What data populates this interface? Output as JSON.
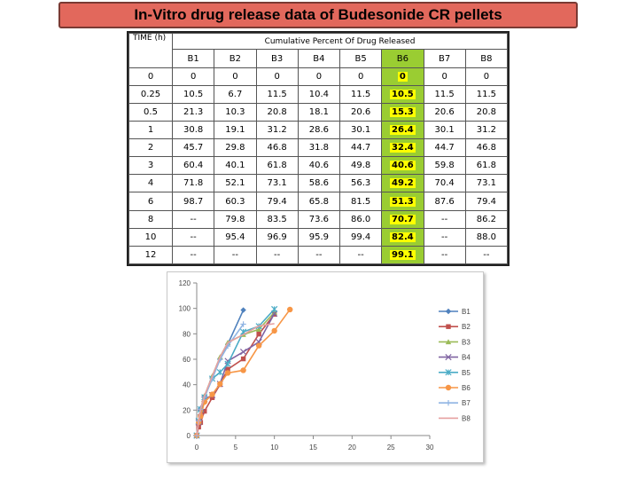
{
  "title": "In-Vitro drug release data of Budesonide  CR pellets",
  "table": {
    "time_header": "TIME (h)",
    "group_header": "Cumulative Percent Of Drug Released",
    "columns": [
      "B1",
      "B2",
      "B3",
      "B4",
      "B5",
      "B6",
      "B7",
      "B8"
    ],
    "highlight_column": "B6",
    "rows": [
      {
        "t": "0",
        "v": [
          "0",
          "0",
          "0",
          "0",
          "0",
          "0",
          "0",
          "0"
        ]
      },
      {
        "t": "0.25",
        "v": [
          "10.5",
          "6.7",
          "11.5",
          "10.4",
          "11.5",
          "10.5",
          "11.5",
          "11.5"
        ]
      },
      {
        "t": "0.5",
        "v": [
          "21.3",
          "10.3",
          "20.8",
          "18.1",
          "20.6",
          "15.3",
          "20.6",
          "20.8"
        ]
      },
      {
        "t": "1",
        "v": [
          "30.8",
          "19.1",
          "31.2",
          "28.6",
          "30.1",
          "26.4",
          "30.1",
          "31.2"
        ]
      },
      {
        "t": "2",
        "v": [
          "45.7",
          "29.8",
          "46.8",
          "31.8",
          "44.7",
          "32.4",
          "44.7",
          "46.8"
        ]
      },
      {
        "t": "3",
        "v": [
          "60.4",
          "40.1",
          "61.8",
          "40.6",
          "49.8",
          "40.6",
          "59.8",
          "61.8"
        ]
      },
      {
        "t": "4",
        "v": [
          "71.8",
          "52.1",
          "73.1",
          "58.6",
          "56.3",
          "49.2",
          "70.4",
          "73.1"
        ]
      },
      {
        "t": "6",
        "v": [
          "98.7",
          "60.3",
          "79.4",
          "65.8",
          "81.5",
          "51.3",
          "87.6",
          "79.4"
        ]
      },
      {
        "t": "8",
        "v": [
          "--",
          "79.8",
          "83.5",
          "73.6",
          "86.0",
          "70.7",
          "--",
          "86.2"
        ]
      },
      {
        "t": "10",
        "v": [
          "--",
          "95.4",
          "96.9",
          "95.9",
          "99.4",
          "82.4",
          "--",
          "88.0"
        ]
      },
      {
        "t": "12",
        "v": [
          "--",
          "--",
          "--",
          "--",
          "--",
          "99.1",
          "--",
          "--"
        ]
      }
    ]
  },
  "chart_data": {
    "type": "line",
    "x": [
      0,
      0.25,
      0.5,
      1,
      2,
      3,
      4,
      6,
      8,
      10,
      12
    ],
    "xlim": [
      0,
      30
    ],
    "ylim": [
      0,
      120
    ],
    "xticks": [
      0,
      5,
      10,
      15,
      20,
      25,
      30
    ],
    "yticks": [
      0,
      20,
      40,
      60,
      80,
      100,
      120
    ],
    "grid": false,
    "legend_position": "right",
    "series": [
      {
        "name": "B1",
        "color": "#4f81bd",
        "marker": "diamond",
        "values": [
          0,
          10.5,
          21.3,
          30.8,
          45.7,
          60.4,
          71.8,
          98.7,
          null,
          null,
          null
        ]
      },
      {
        "name": "B2",
        "color": "#c0504d",
        "marker": "square",
        "values": [
          0,
          6.7,
          10.3,
          19.1,
          29.8,
          40.1,
          52.1,
          60.3,
          79.8,
          95.4,
          null
        ]
      },
      {
        "name": "B3",
        "color": "#9bbb59",
        "marker": "triangle",
        "values": [
          0,
          11.5,
          20.8,
          31.2,
          46.8,
          61.8,
          73.1,
          79.4,
          83.5,
          96.9,
          null
        ]
      },
      {
        "name": "B4",
        "color": "#8064a2",
        "marker": "x",
        "values": [
          0,
          10.4,
          18.1,
          28.6,
          31.8,
          40.6,
          58.6,
          65.8,
          73.6,
          95.9,
          null
        ]
      },
      {
        "name": "B5",
        "color": "#4bacc6",
        "marker": "star",
        "values": [
          0,
          11.5,
          20.6,
          30.1,
          44.7,
          49.8,
          56.3,
          81.5,
          86.0,
          99.4,
          null
        ]
      },
      {
        "name": "B6",
        "color": "#f79646",
        "marker": "circle",
        "values": [
          0,
          10.5,
          15.3,
          26.4,
          32.4,
          40.6,
          49.2,
          51.3,
          70.7,
          82.4,
          99.1
        ]
      },
      {
        "name": "B7",
        "color": "#8fb4e3",
        "marker": "plus",
        "values": [
          0,
          11.5,
          20.6,
          30.1,
          44.7,
          59.8,
          70.4,
          87.6,
          null,
          null,
          null
        ]
      },
      {
        "name": "B8",
        "color": "#e6a0a0",
        "marker": "none",
        "values": [
          0,
          11.5,
          20.8,
          31.2,
          46.8,
          61.8,
          73.1,
          79.4,
          86.2,
          88.0,
          null
        ]
      }
    ]
  }
}
